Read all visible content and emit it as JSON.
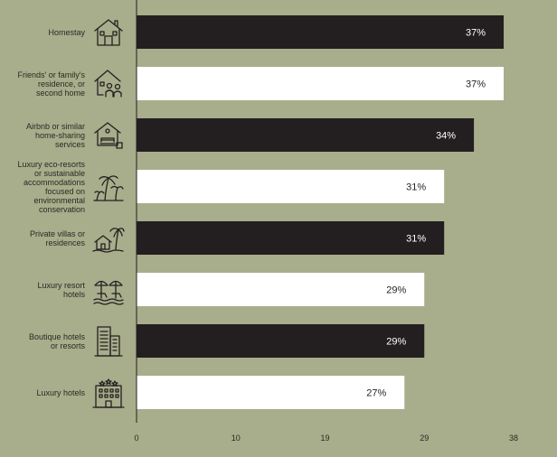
{
  "chart_data": {
    "type": "bar",
    "orientation": "horizontal",
    "categories": [
      "Homestay",
      "Friends' or family's residence, or second home",
      "Airbnb or similar home-sharing services",
      "Luxury eco-resorts or sustainable accommodations focused on environmental conservation",
      "Private villas or residences",
      "Luxury resort hotels",
      "Boutique hotels or resorts",
      "Luxury hotels"
    ],
    "category_lines": [
      [
        "Homestay"
      ],
      [
        "Friends' or family's",
        "residence, or",
        "second home"
      ],
      [
        "Airbnb or similar",
        "home-sharing",
        "services"
      ],
      [
        "Luxury eco-resorts",
        "or sustainable",
        "accommodations",
        "focused on",
        "environmental",
        "conservation"
      ],
      [
        "Private villas or",
        "residences"
      ],
      [
        "Luxury resort",
        "hotels"
      ],
      [
        "Boutique hotels",
        "or resorts"
      ],
      [
        "Luxury hotels"
      ]
    ],
    "values": [
      37,
      37,
      34,
      31,
      31,
      29,
      29,
      27
    ],
    "data_labels": [
      "37%",
      "37%",
      "34%",
      "31%",
      "31%",
      "29%",
      "29%",
      "27%"
    ],
    "bar_colors": [
      "#231f20",
      "#ffffff",
      "#231f20",
      "#ffffff",
      "#231f20",
      "#ffffff",
      "#231f20",
      "#ffffff"
    ],
    "label_colors": [
      "#ffffff",
      "#231f20",
      "#ffffff",
      "#231f20",
      "#ffffff",
      "#231f20",
      "#ffffff",
      "#231f20"
    ],
    "icons": [
      "house-icon",
      "family-home-icon",
      "rental-home-icon",
      "palm-trees-icon",
      "villa-palm-icon",
      "beach-umbrella-icon",
      "city-building-icon",
      "hotel-building-icon"
    ],
    "xlim": [
      0,
      38
    ],
    "xticks": [
      0,
      10,
      19,
      29,
      38
    ],
    "xtick_labels": [
      "0",
      "10",
      "19",
      "29",
      "38"
    ],
    "title": "",
    "xlabel": "",
    "ylabel": "",
    "grid": false,
    "colors": {
      "background": "#a8ad8b",
      "dark": "#231f20",
      "light": "#ffffff",
      "axis": "#231f20"
    }
  }
}
